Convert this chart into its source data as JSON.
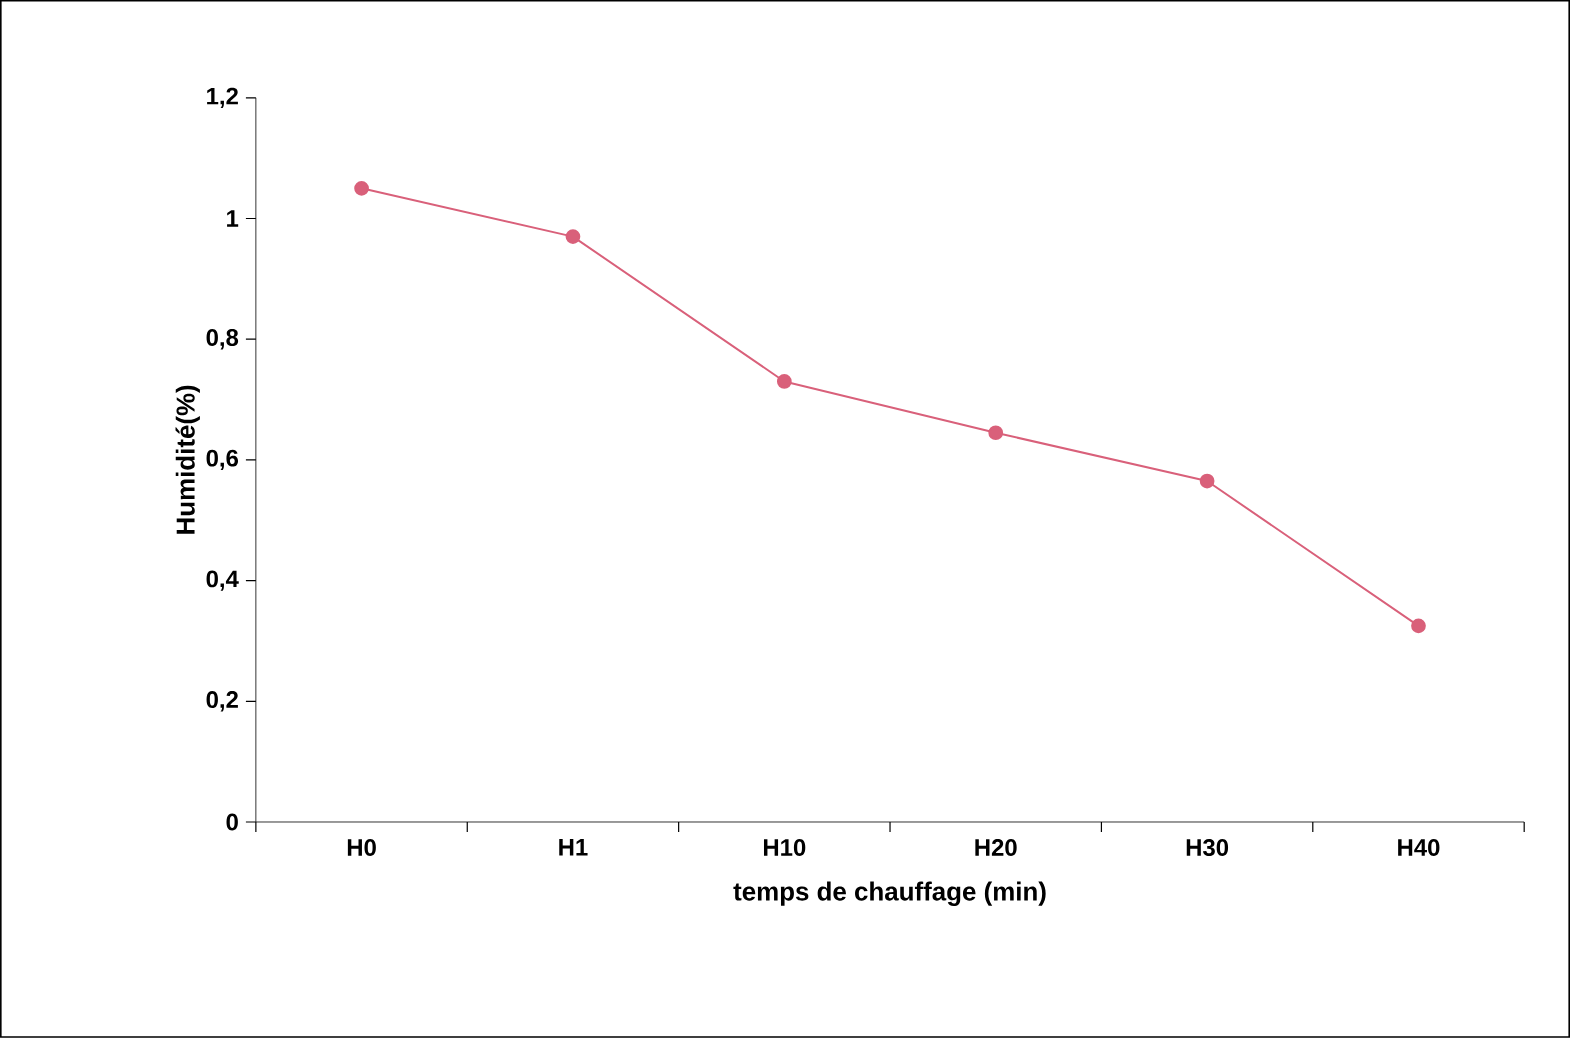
{
  "chart_data": {
    "type": "line",
    "xlabel": "temps de chauffage (min)",
    "ylabel": "Humidité(%)",
    "categories": [
      "H0",
      "H1",
      "H10",
      "H20",
      "H30",
      "H40"
    ],
    "series": [
      {
        "color": "#d9607a",
        "values": [
          1.05,
          0.97,
          0.73,
          0.645,
          0.565,
          0.325
        ]
      }
    ],
    "ylim": [
      0,
      1.2
    ],
    "yticks": [
      0,
      {
        "value": 0.2,
        "label": "0,2"
      },
      {
        "value": 0.4,
        "label": "0,4"
      },
      {
        "value": 0.6,
        "label": "0,6"
      },
      {
        "value": 0.8,
        "label": "0,8"
      },
      1,
      {
        "value": 1.2,
        "label": "1,2"
      }
    ],
    "marker": "circle",
    "line_style": "solid"
  }
}
